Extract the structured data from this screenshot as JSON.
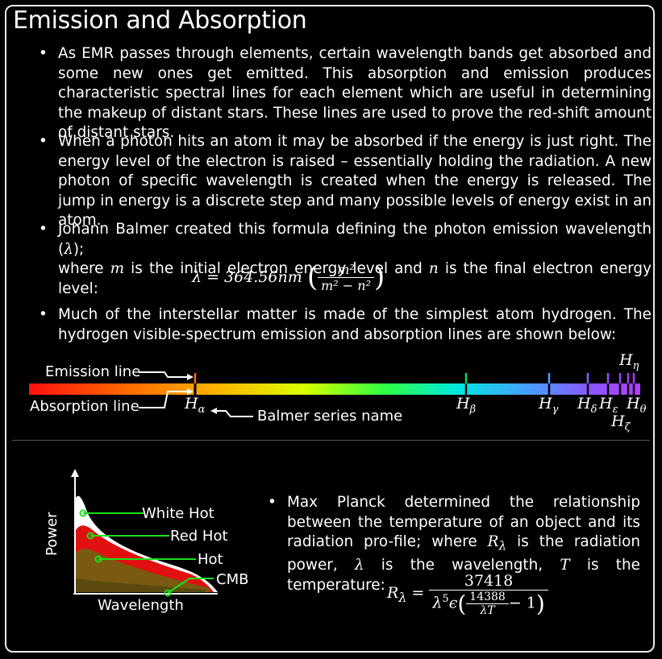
{
  "title": "Emission and Absorption",
  "bullets": [
    "As EMR passes through elements, certain wavelength bands get absorbed and some new ones get emitted. This absorption and emission produces characteristic spectral lines for each element which are useful in determining the makeup of distant stars. These lines are used to prove the red-shift amount of distant stars.",
    "When a photon hits an atom it may be absorbed if the energy is just right. The energy level of the electron is raised – essentially holding the radiation. A new photon of specific wavelength is created when the energy is released. The jump in energy is a discrete step and many possible levels of energy exist in an atom.",
    "Much of the interstellar matter is made of the simplest atom hydrogen. The hydrogen visible-spectrum emission and absorption lines are shown below:"
  ],
  "balmer": {
    "line1_a": "Johann Balmer created this formula defining the photon emission wavelength (",
    "lambda": "λ",
    "line1_b": ");",
    "line2_a": "where ",
    "m": "m",
    "line2_b": " is the initial electron energy level and ",
    "n": "n",
    "line2_c": " is the final electron energy level:",
    "formula_lhs": "λ = 364.56nm",
    "formula_num": "m²",
    "formula_den": "m² − n²"
  },
  "spectrum": {
    "emission_label": "Emission line",
    "absorption_label": "Absorption line",
    "series_label": "Balmer series name",
    "lines": [
      {
        "name": "H",
        "sub": "α",
        "color": "#ff5a00"
      },
      {
        "name": "H",
        "sub": "β",
        "color": "#10d060"
      },
      {
        "name": "H",
        "sub": "γ",
        "color": "#4aa0ff"
      },
      {
        "name": "H",
        "sub": "δ",
        "color": "#8a5cff"
      },
      {
        "name": "H",
        "sub": "ε",
        "color": "#9a48ff"
      },
      {
        "name": "H",
        "sub": "ζ",
        "color": "#a040ff"
      },
      {
        "name": "H",
        "sub": "η",
        "color": "#a83cff"
      },
      {
        "name": "H",
        "sub": "θ",
        "color": "#b038ff"
      }
    ]
  },
  "planck": {
    "text_parts": [
      "Max Planck determined the relationship between the temperature of an object and its radiation pro-file; where ",
      "R",
      "λ",
      " is the radiation power, ",
      "λ",
      " is the wavelength, ",
      "T",
      " is the temperature:"
    ],
    "formula_lhs": "R",
    "formula_lhs_sub": "λ",
    "formula_num": "37418",
    "formula_den_a": "λ",
    "formula_den_exp": "5",
    "formula_den_e": "ϵ",
    "formula_inner_num": "14388",
    "formula_inner_den": "λT",
    "formula_minus": "− 1",
    "chart_labels": {
      "y_axis": "Power",
      "x_axis": "Wavelength",
      "white_hot": "White Hot",
      "red_hot": "Red Hot",
      "hot": "Hot",
      "cmb": "CMB"
    }
  }
}
